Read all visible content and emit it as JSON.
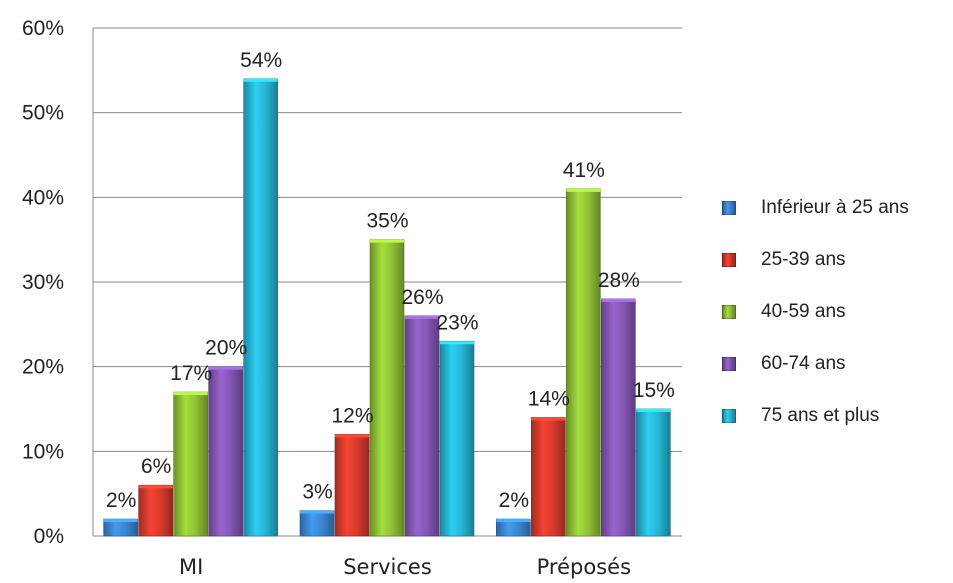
{
  "chart_data": {
    "type": "bar",
    "categories": [
      "MI",
      "Services",
      "Préposés"
    ],
    "series": [
      {
        "name": "Inférieur à 25 ans",
        "color": "#3a86d1",
        "values": [
          2,
          3,
          2
        ],
        "labels": [
          "2%",
          "3%",
          "2%"
        ]
      },
      {
        "name": "25-39 ans",
        "color": "#d63a2c",
        "values": [
          6,
          12,
          14
        ],
        "labels": [
          "6%",
          "12%",
          "14%"
        ]
      },
      {
        "name": "40-59 ans",
        "color": "#8fc135",
        "values": [
          17,
          35,
          41
        ],
        "labels": [
          "17%",
          "35%",
          "41%"
        ]
      },
      {
        "name": "60-74 ans",
        "color": "#8457b4",
        "values": [
          20,
          26,
          28
        ],
        "labels": [
          "20%",
          "26%",
          "28%"
        ]
      },
      {
        "name": "75 ans et plus",
        "color": "#27b4d3",
        "values": [
          54,
          23,
          15
        ],
        "labels": [
          "54%",
          "23%",
          "15%"
        ]
      }
    ],
    "y_ticks": [
      0,
      10,
      20,
      30,
      40,
      50,
      60
    ],
    "y_tick_labels": [
      "0%",
      "10%",
      "20%",
      "30%",
      "40%",
      "50%",
      "60%"
    ],
    "ylim": [
      0,
      60
    ],
    "grid": true,
    "legend_position": "right"
  }
}
